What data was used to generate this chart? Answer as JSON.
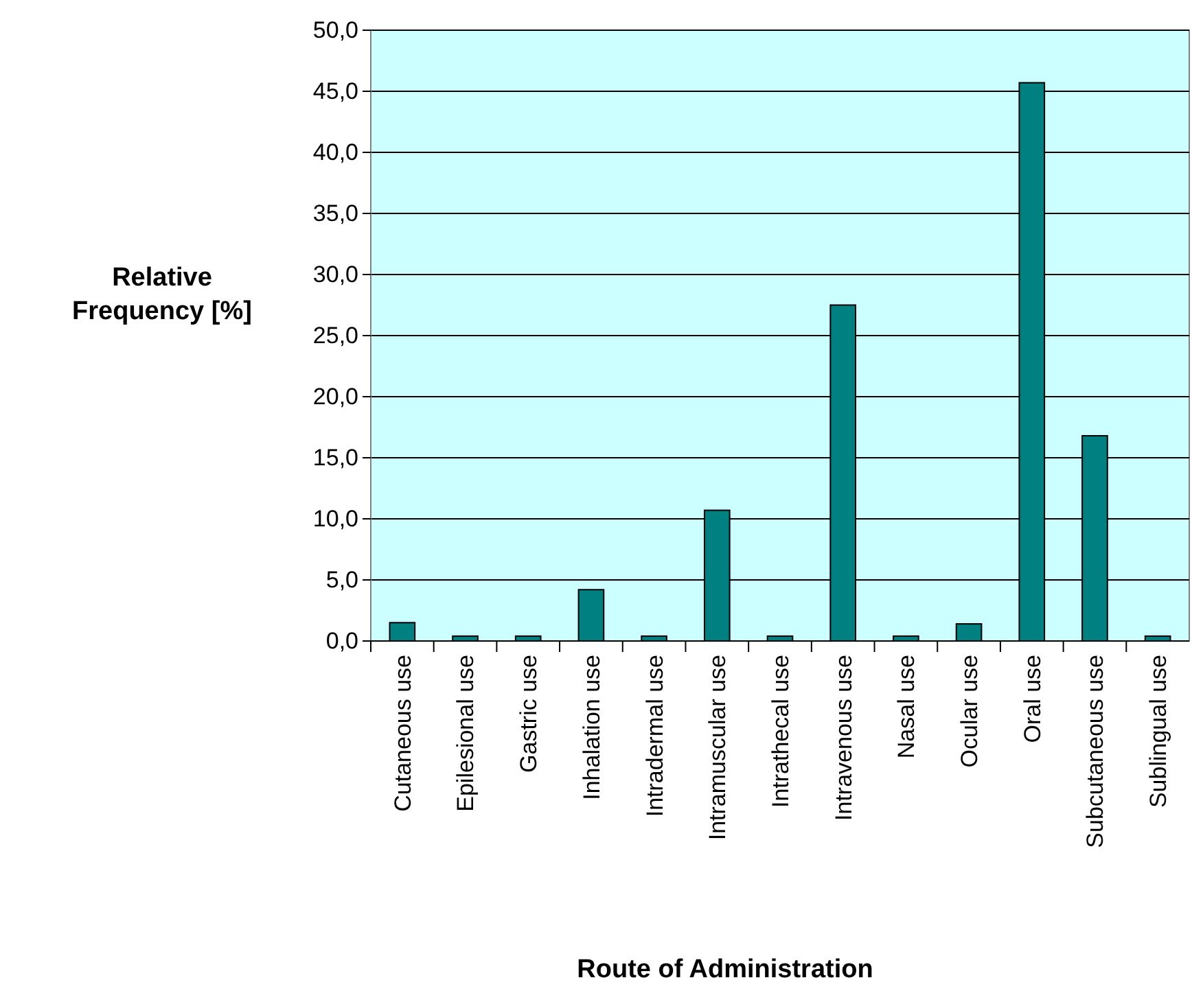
{
  "chart_data": {
    "type": "bar",
    "xlabel": "Route of Administration",
    "ylabel": "Relative Frequency [%]",
    "categories": [
      "Cutaneous use",
      "Epilesional use",
      "Gastric use",
      "Inhalation use",
      "Intradermal use",
      "Intramuscular use",
      "Intrathecal use",
      "Intravenous use",
      "Nasal use",
      "Ocular use",
      "Oral use",
      "Subcutaneous use",
      "Sublingual use"
    ],
    "values": [
      1.5,
      0.4,
      0.4,
      4.2,
      0.4,
      10.7,
      0.4,
      27.5,
      0.4,
      1.4,
      45.7,
      16.8,
      0.4
    ],
    "color": "#008080",
    "ylim": [
      0,
      50
    ],
    "yticks": [
      {
        "value": 0,
        "label": "0,0"
      },
      {
        "value": 5,
        "label": "5,0"
      },
      {
        "value": 10,
        "label": "10,0"
      },
      {
        "value": 15,
        "label": "15,0"
      },
      {
        "value": 20,
        "label": "20,0"
      },
      {
        "value": 25,
        "label": "25,0"
      },
      {
        "value": 30,
        "label": "30,0"
      },
      {
        "value": 35,
        "label": "35,0"
      },
      {
        "value": 40,
        "label": "40,0"
      },
      {
        "value": 45,
        "label": "45,0"
      },
      {
        "value": 50,
        "label": "50,0"
      }
    ],
    "grid": "y"
  }
}
